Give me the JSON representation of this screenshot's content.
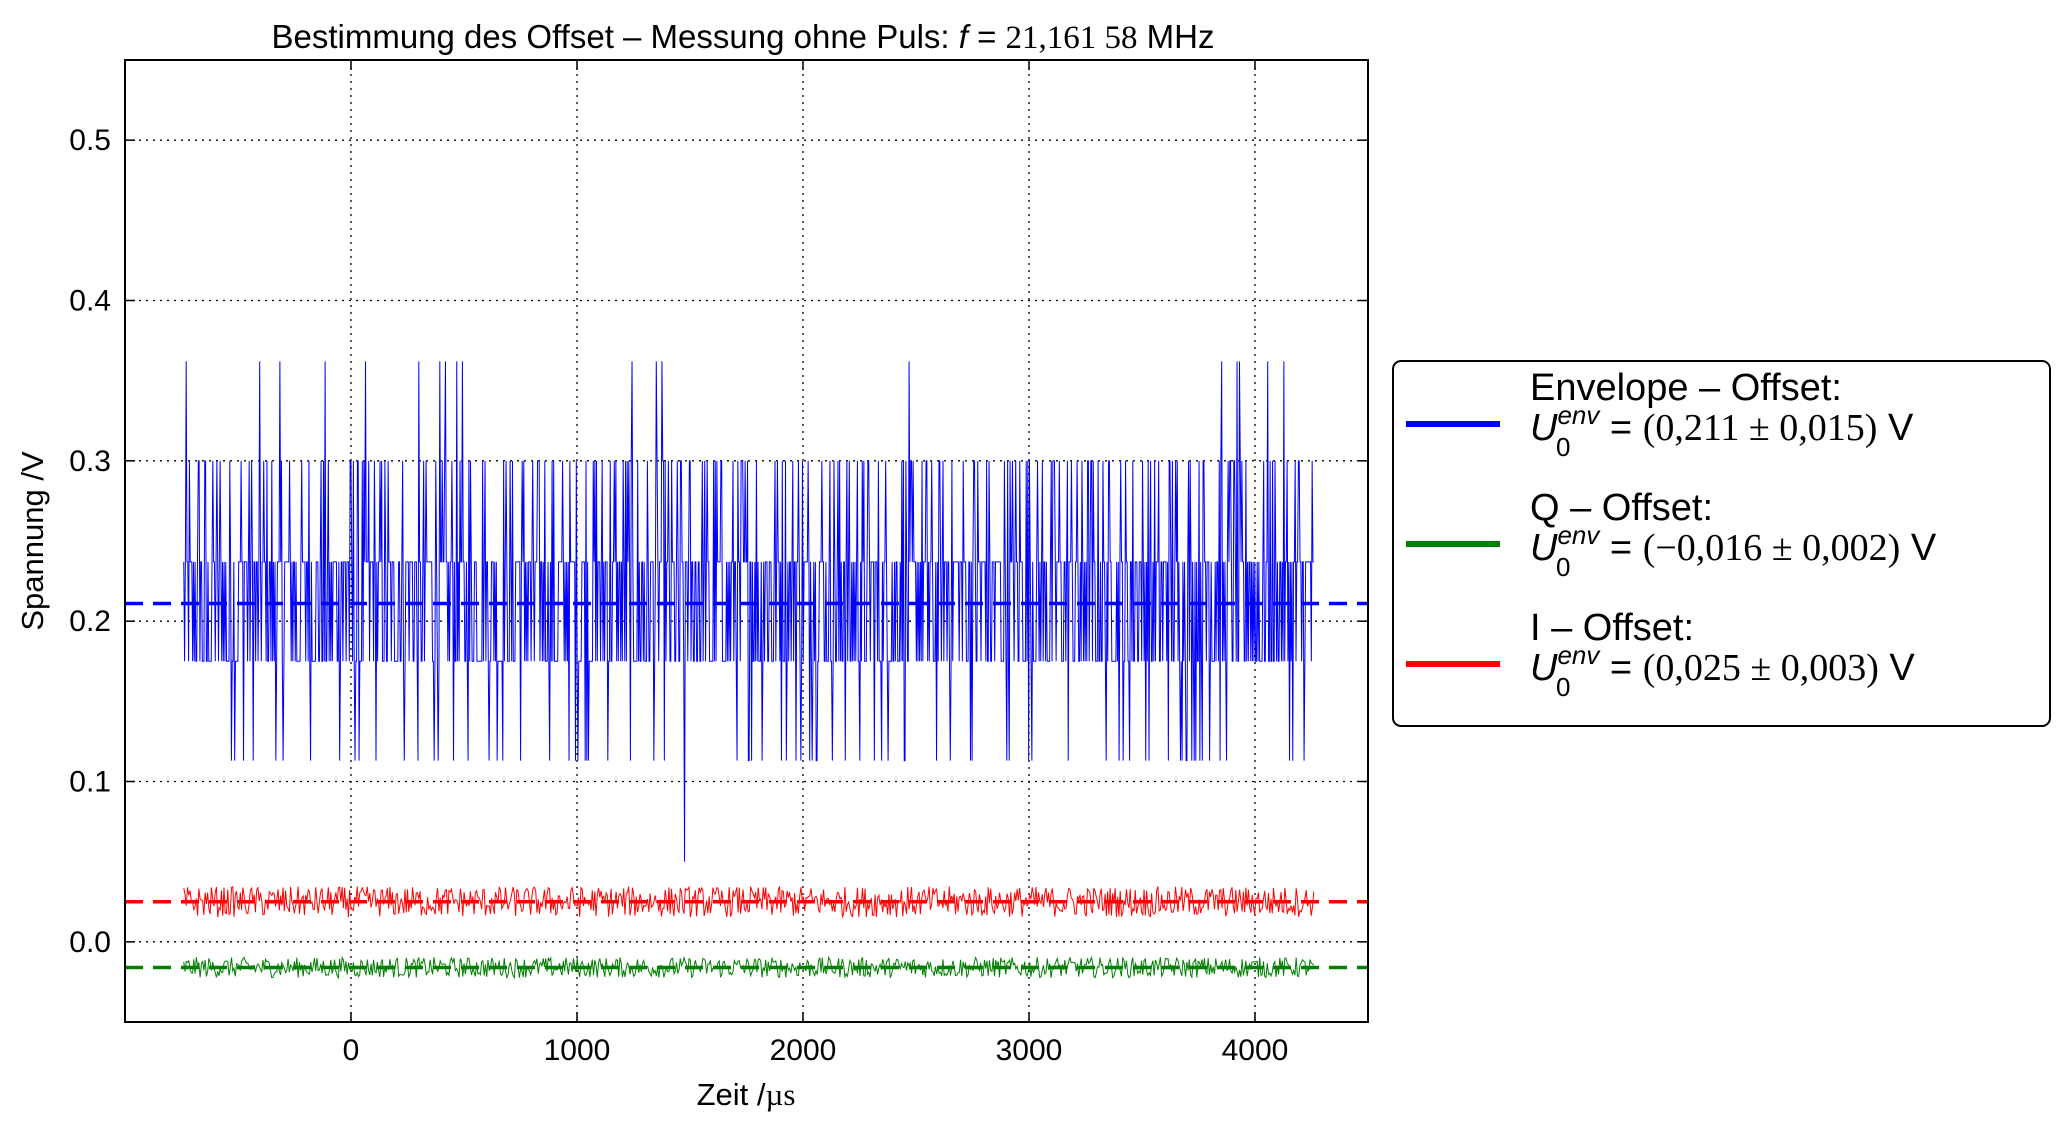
{
  "chart_data": {
    "type": "line",
    "title": "Bestimmung des Offset – Messung ohne Puls: f = 21,161 58 MHz",
    "title_parts": {
      "prefix": "Bestimmung des Offset – Messung ohne Puls: ",
      "var": "f",
      "eq": " = ",
      "value": "21,161 58",
      "unit": " MHz"
    },
    "xlabel": "Zeit /µs",
    "xlabel_parts": {
      "name": "Zeit /",
      "unit": "µs"
    },
    "ylabel": "Spannung /V",
    "xlim": [
      -1000,
      4500
    ],
    "ylim": [
      -0.05,
      0.55
    ],
    "xticks": [
      0,
      1000,
      2000,
      3000,
      4000
    ],
    "xtick_labels": [
      "0",
      "1000",
      "2000",
      "3000",
      "4000"
    ],
    "yticks": [
      0.0,
      0.1,
      0.2,
      0.3,
      0.4,
      0.5
    ],
    "ytick_labels": [
      "0.0",
      "0.1",
      "0.2",
      "0.3",
      "0.4",
      "0.5"
    ],
    "grid": true,
    "legend_position": "outside-right",
    "x_range": [
      -740,
      4260
    ],
    "series": [
      {
        "name": "Envelope – Offset",
        "color": "#0000ff",
        "levels": [
          0.113,
          0.175,
          0.237,
          0.3,
          0.362
        ],
        "level_weights": [
          0.05,
          0.38,
          0.4,
          0.15,
          0.02
        ],
        "offset": 0.211,
        "offset_label": "Envelope – Offset:",
        "value_label": "(0,211 ± 0,015)"
      },
      {
        "name": "Q – Offset",
        "color": "#008000",
        "levels": [
          -0.016
        ],
        "noise": 0.004,
        "offset": -0.016,
        "offset_label": "Q – Offset:",
        "value_label": "(−0,016 ± 0,002)"
      },
      {
        "name": "I – Offset",
        "color": "#ff0000",
        "levels": [
          0.025
        ],
        "noise": 0.006,
        "offset": 0.025,
        "offset_label": "I – Offset:",
        "value_label": "(0,025 ± 0,003)"
      }
    ],
    "legend_symbol": "U",
    "legend_sub": "0",
    "legend_sup": "env",
    "legend_eq": " = ",
    "legend_unit": " V"
  }
}
